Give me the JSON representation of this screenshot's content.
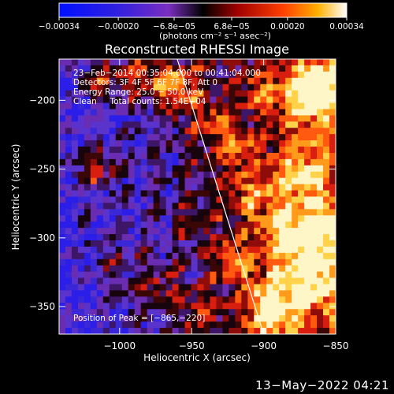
{
  "colorbar": {
    "ticks": [
      -0.00034,
      -0.0002,
      -6.8e-05,
      6.8e-05,
      0.0002,
      0.00034
    ],
    "tick_labels": [
      "−0.00034",
      "−0.00020",
      "−6.8e−05",
      "6.8e−05",
      "0.00020",
      "0.00034"
    ],
    "unit_label": "(photons cm⁻² s⁻¹ asec⁻²)",
    "range": [
      -0.00034,
      0.00034
    ]
  },
  "chart_data": {
    "type": "heatmap",
    "title": "Reconstructed RHESSI Image",
    "xlabel": "Heliocentric X (arcsec)",
    "ylabel": "Heliocentric Y (arcsec)",
    "xlim": [
      -1042,
      -850
    ],
    "ylim": [
      -370,
      -170
    ],
    "xticks": [
      -1000,
      -950,
      -900,
      -850
    ],
    "xtick_labels": [
      "−1000",
      "−950",
      "−900",
      "−850"
    ],
    "yticks": [
      -200,
      -250,
      -300,
      -350
    ],
    "ytick_labels": [
      "−200",
      "−250",
      "−300",
      "−350"
    ],
    "limb_line": {
      "x": [
        -960,
        -900
      ],
      "y": [
        -170,
        -370
      ]
    },
    "peak": {
      "x": -865,
      "y": -220
    },
    "annotations": [
      "23−Feb−2014 00:35:04.000 to 00:41:04.000",
      "Detectors: 3F 4F 5F 6F 7F 8F, Att 0",
      "Energy Range: 25.0 − 50.0 keV",
      "Clean     Total counts: 1.54E+04"
    ],
    "peak_label": "Position of Peak = [−865,−220]"
  },
  "footer": {
    "timestamp": "13−May−2022 04:21"
  }
}
